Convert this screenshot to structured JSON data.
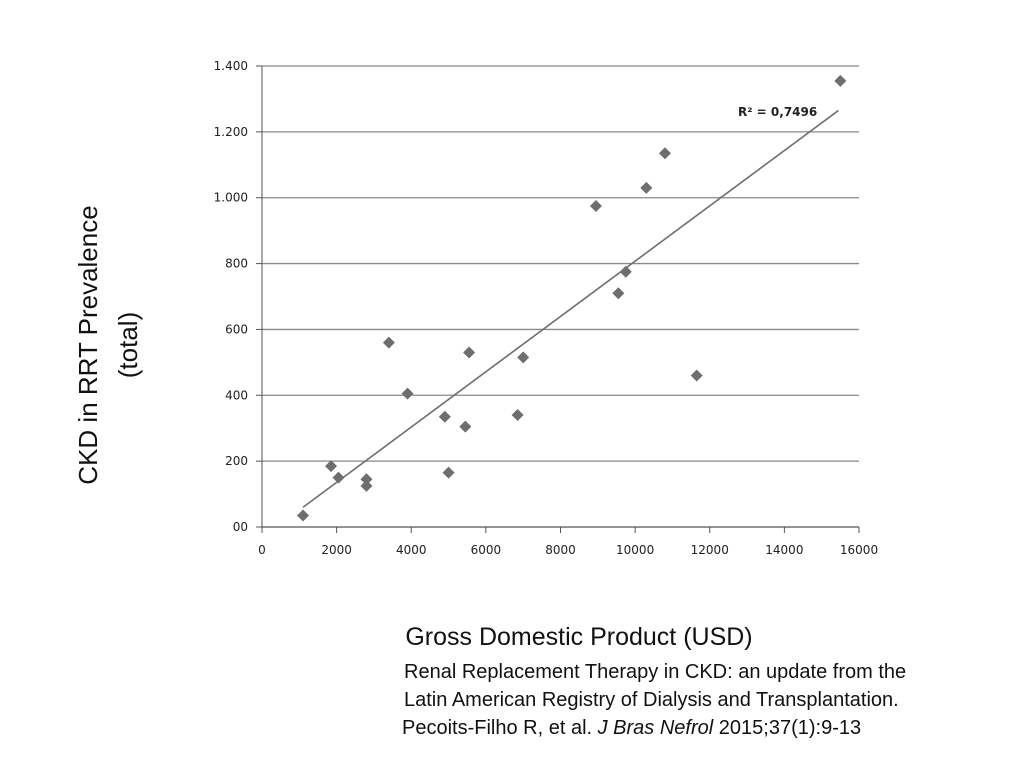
{
  "chart_data": {
    "type": "scatter",
    "title": "",
    "xlabel": "Gross Domestic Product (USD)",
    "ylabel_lines": [
      "CKD in RRT Prevalence",
      "(total)"
    ],
    "xlim": [
      0,
      16000
    ],
    "ylim": [
      0,
      1400
    ],
    "x_ticks": [
      0,
      2000,
      4000,
      6000,
      8000,
      10000,
      12000,
      14000,
      16000
    ],
    "x_tick_labels": [
      "0",
      "2000",
      "4000",
      "6000",
      "8000",
      "10000",
      "12000",
      "14000",
      "16000"
    ],
    "y_ticks": [
      0,
      200,
      400,
      600,
      800,
      1000,
      1200,
      1400
    ],
    "y_tick_labels": [
      "00",
      "200",
      "400",
      "600",
      "800",
      "1.000",
      "1.200",
      "1.400"
    ],
    "grid": "horizontal",
    "marker": "diamond",
    "marker_color": "#6e6e6e",
    "line_color": "#6e6e6e",
    "series": [
      {
        "points": [
          {
            "x": 1100,
            "y": 35
          },
          {
            "x": 1850,
            "y": 185
          },
          {
            "x": 2050,
            "y": 150
          },
          {
            "x": 2800,
            "y": 145
          },
          {
            "x": 2800,
            "y": 125
          },
          {
            "x": 3400,
            "y": 560
          },
          {
            "x": 3900,
            "y": 405
          },
          {
            "x": 4900,
            "y": 335
          },
          {
            "x": 5000,
            "y": 165
          },
          {
            "x": 5450,
            "y": 305
          },
          {
            "x": 5550,
            "y": 530
          },
          {
            "x": 6850,
            "y": 340
          },
          {
            "x": 7000,
            "y": 515
          },
          {
            "x": 8950,
            "y": 975
          },
          {
            "x": 9550,
            "y": 710
          },
          {
            "x": 9750,
            "y": 775
          },
          {
            "x": 10300,
            "y": 1030
          },
          {
            "x": 10800,
            "y": 1135
          },
          {
            "x": 11650,
            "y": 460
          },
          {
            "x": 15500,
            "y": 1355
          }
        ]
      }
    ],
    "trendline": {
      "x": [
        1100,
        15450
      ],
      "y": [
        60,
        1265
      ]
    },
    "annotation": "R² = 0,7496"
  },
  "citation": {
    "line1": "Renal Replacement Therapy in CKD: an update from the",
    "line2": "Latin American Registry of Dialysis and Transplantation.",
    "line3_authors": "Pecoits-Filho R, et al. ",
    "line3_journal": "J Bras Nefrol",
    "line3_rest": " 2015;37(1):9-13"
  }
}
